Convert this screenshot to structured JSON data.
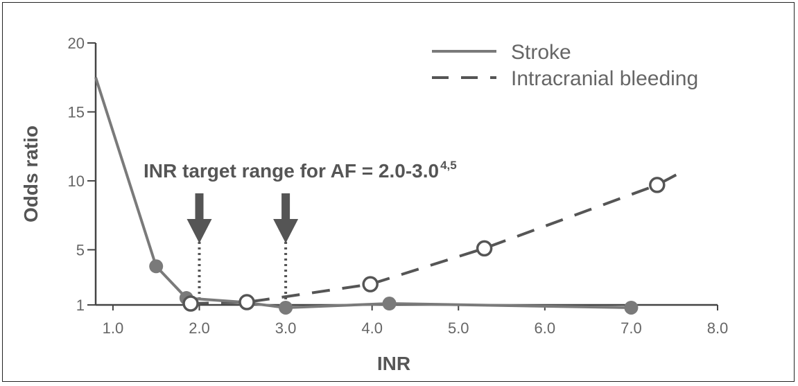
{
  "chart_data": {
    "type": "line",
    "xlabel": "INR",
    "ylabel": "Odds ratio",
    "xlim": [
      0.8,
      8.0
    ],
    "ylim": [
      1,
      20
    ],
    "x_ticks": [
      1.0,
      2.0,
      3.0,
      4.0,
      5.0,
      6.0,
      7.0,
      8.0
    ],
    "x_tick_labels": [
      "1.0",
      "2.0",
      "3.0",
      "4.0",
      "5.0",
      "6.0",
      "7.0",
      "8.0"
    ],
    "y_ticks": [
      1,
      5,
      10,
      15,
      20
    ],
    "y_tick_labels": [
      "1",
      "5",
      "10",
      "15",
      "20"
    ],
    "grid": false,
    "legend_placement": "top-right",
    "series": [
      {
        "name": "Stroke",
        "style": "solid",
        "marker": "filled-circle",
        "color": "#7a7a7a",
        "line_x": [
          0.8,
          1.5,
          1.85,
          2.5,
          3.0,
          4.2,
          7.0
        ],
        "line_y": [
          17.5,
          3.8,
          1.5,
          1.2,
          0.8,
          1.1,
          0.8
        ],
        "points_x": [
          1.5,
          1.85,
          2.55,
          3.0,
          4.2,
          7.0
        ],
        "points_y": [
          3.8,
          1.5,
          1.2,
          0.8,
          1.1,
          0.8
        ]
      },
      {
        "name": "Intracranial bleeding",
        "style": "dashed",
        "marker": "open-circle",
        "color": "#555555",
        "line_x": [
          1.9,
          2.55,
          3.0,
          3.98,
          5.3,
          7.3,
          7.6
        ],
        "line_y": [
          1.1,
          1.2,
          1.6,
          2.5,
          5.1,
          9.7,
          10.7
        ],
        "points_x": [
          1.9,
          2.55,
          3.98,
          5.3,
          7.3
        ],
        "points_y": [
          1.1,
          1.2,
          2.5,
          5.1,
          9.7
        ]
      }
    ],
    "annotation": {
      "text": "INR target range for AF = 2.0-3.0",
      "superscript": "4,5",
      "markers_x": [
        2.0,
        3.0
      ]
    },
    "colors": {
      "stroke": "#7a7a7a",
      "bleeding": "#555555",
      "arrow": "#555555",
      "axis": "#444444"
    }
  }
}
